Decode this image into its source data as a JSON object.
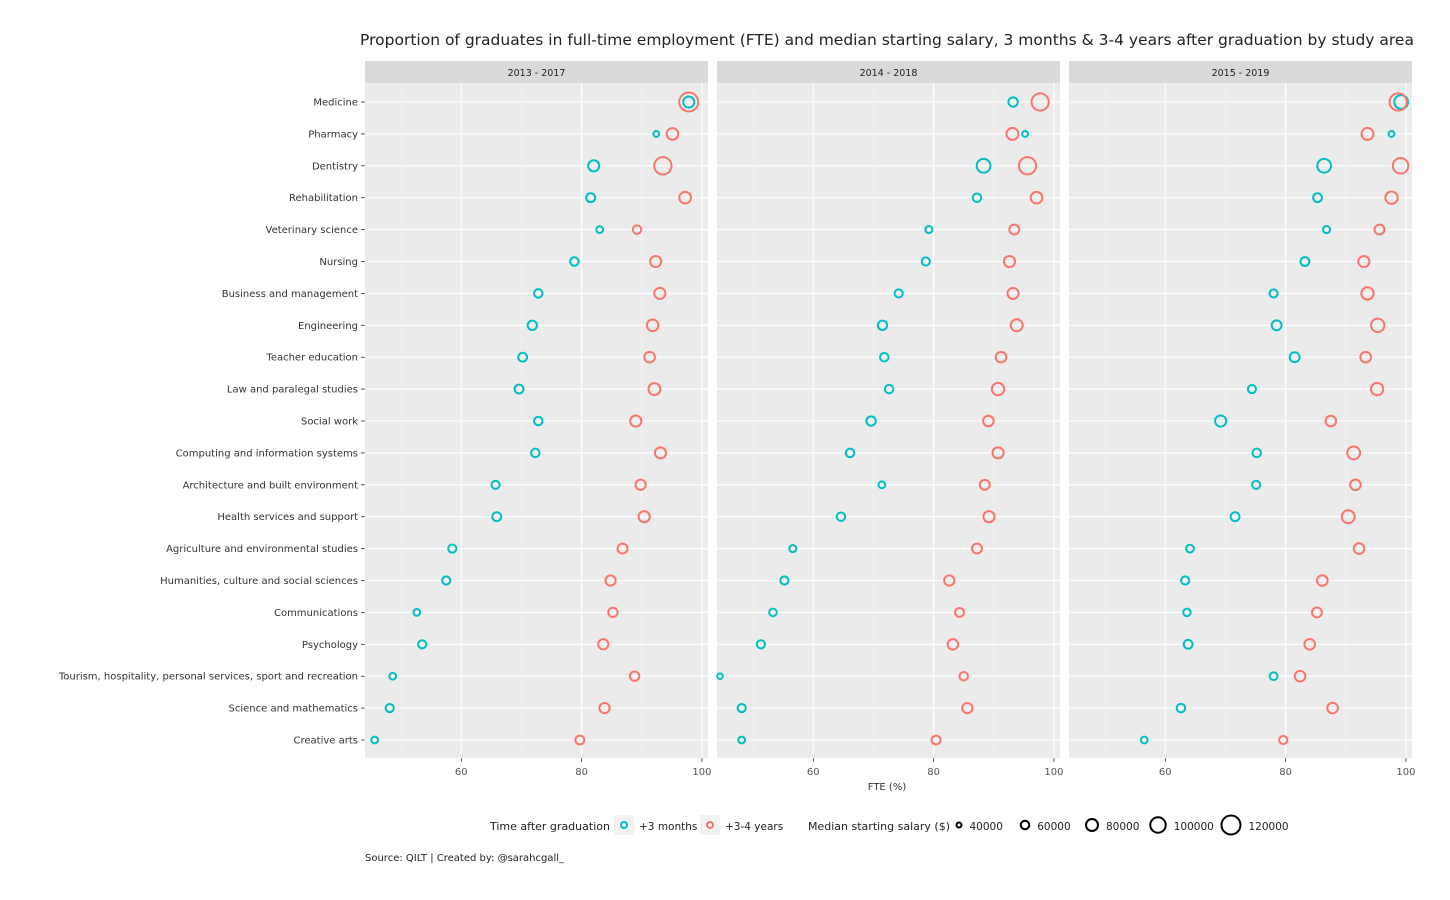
{
  "chart_data": {
    "type": "scatter",
    "title": "Proportion of graduates in full-time employment (FTE) and median starting salary, 3 months & 3-4 years after graduation by study area",
    "xlabel": "FTE (%)",
    "ylabel": "",
    "xlim": [
      44,
      101
    ],
    "x_ticks": [
      60,
      80,
      100
    ],
    "grid": true,
    "legend_placement": "bottom",
    "caption": "Source: QILT | Created by: @sarahcgall_",
    "categories": [
      "Medicine",
      "Pharmacy",
      "Dentistry",
      "Rehabilitation",
      "Veterinary science",
      "Nursing",
      "Business and management",
      "Engineering",
      "Teacher education",
      "Law and paralegal studies",
      "Social work",
      "Computing and information systems",
      "Architecture and built environment",
      "Health services and support",
      "Agriculture and environmental studies",
      "Humanities, culture and social sciences",
      "Communications",
      "Psychology",
      "Tourism, hospitality, personal services, sport and recreation",
      "Science and mathematics",
      "Creative arts"
    ],
    "legend": {
      "color_title": "Time after graduation",
      "color_items": [
        {
          "label": "+3 months",
          "color": "#00BFC4"
        },
        {
          "label": "+3-4 years",
          "color": "#F8766D"
        }
      ],
      "size_title": "Median starting salary ($)",
      "size_items": [
        "40000",
        "60000",
        "80000",
        "100000",
        "120000"
      ],
      "size_values": [
        40000,
        60000,
        80000,
        100000,
        120000
      ]
    },
    "panels": [
      {
        "label": "2013 - 2017",
        "series": [
          {
            "name": "+3 months",
            "fte": [
              97.8,
              92.4,
              82,
              81.5,
              83,
              78.8,
              72.8,
              71.8,
              70.2,
              69.6,
              72.8,
              72.3,
              65.7,
              65.9,
              58.5,
              57.5,
              52.6,
              53.5,
              48.6,
              48.1,
              45.6
            ],
            "salary": [
              75000,
              45000,
              75000,
              63000,
              50000,
              60000,
              60000,
              65000,
              62000,
              62000,
              60000,
              60000,
              58000,
              62000,
              58000,
              58000,
              50000,
              58000,
              50000,
              58000,
              50000
            ]
          },
          {
            "name": "+3-4 years",
            "fte": [
              97.8,
              95.1,
              93.5,
              97.2,
              89.2,
              92.3,
              93,
              91.8,
              91.3,
              92.1,
              89,
              93.1,
              89.8,
              90.4,
              86.8,
              84.8,
              85.2,
              83.6,
              88.8,
              83.8,
              79.7
            ],
            "salary": [
              120000,
              78000,
              110000,
              78000,
              60000,
              75000,
              75000,
              78000,
              72000,
              80000,
              75000,
              75000,
              70000,
              75000,
              68000,
              70000,
              65000,
              70000,
              65000,
              70000,
              62000
            ]
          }
        ]
      },
      {
        "label": "2014 - 2018",
        "series": [
          {
            "name": "+3 months",
            "fte": [
              93.2,
              95.2,
              88.3,
              87.2,
              79.2,
              78.7,
              74.2,
              71.5,
              71.8,
              72.6,
              69.6,
              66.1,
              71.4,
              64.6,
              56.6,
              55.2,
              53.3,
              51.3,
              44.5,
              48.1,
              48.1
            ],
            "salary": [
              65000,
              45000,
              90000,
              60000,
              52000,
              58000,
              58000,
              65000,
              60000,
              60000,
              65000,
              60000,
              50000,
              60000,
              52000,
              58000,
              55000,
              58000,
              44000,
              58000,
              50000
            ]
          },
          {
            "name": "+3-4 years",
            "fte": [
              97.7,
              93.1,
              95.6,
              97.1,
              93.4,
              92.6,
              93.2,
              93.8,
              91.2,
              90.7,
              89.1,
              90.7,
              88.5,
              89.2,
              87.2,
              82.6,
              84.3,
              83.2,
              85,
              85.6,
              80.4
            ],
            "salary": [
              110000,
              80000,
              110000,
              78000,
              68000,
              75000,
              75000,
              80000,
              72000,
              82000,
              72000,
              75000,
              68000,
              75000,
              68000,
              70000,
              62000,
              72000,
              60000,
              70000,
              62000
            ]
          }
        ]
      },
      {
        "label": "2015 - 2019",
        "series": [
          {
            "name": "+3 months",
            "fte": [
              99.2,
              97.6,
              86.4,
              85.3,
              86.8,
              83.2,
              78,
              78.5,
              81.5,
              74.4,
              69.2,
              75.2,
              75.1,
              71.6,
              64.1,
              63.3,
              63.6,
              63.8,
              78,
              62.6,
              56.5
            ],
            "salary": [
              90000,
              45000,
              90000,
              62000,
              52000,
              62000,
              58000,
              68000,
              68000,
              58000,
              75000,
              60000,
              58000,
              62000,
              56000,
              58000,
              54000,
              62000,
              56000,
              60000,
              50000
            ]
          },
          {
            "name": "+3-4 years",
            "fte": [
              98.7,
              93.6,
              99.1,
              97.6,
              95.6,
              93,
              93.6,
              95.3,
              93.3,
              95.2,
              87.5,
              91.3,
              91.6,
              90.4,
              92.2,
              86.1,
              85.2,
              84,
              82.4,
              87.8,
              79.6
            ],
            "salary": [
              110000,
              80000,
              100000,
              82000,
              68000,
              75000,
              82000,
              88000,
              72000,
              82000,
              72000,
              85000,
              72000,
              85000,
              72000,
              72000,
              68000,
              72000,
              72000,
              72000,
              58000
            ]
          }
        ]
      }
    ]
  }
}
